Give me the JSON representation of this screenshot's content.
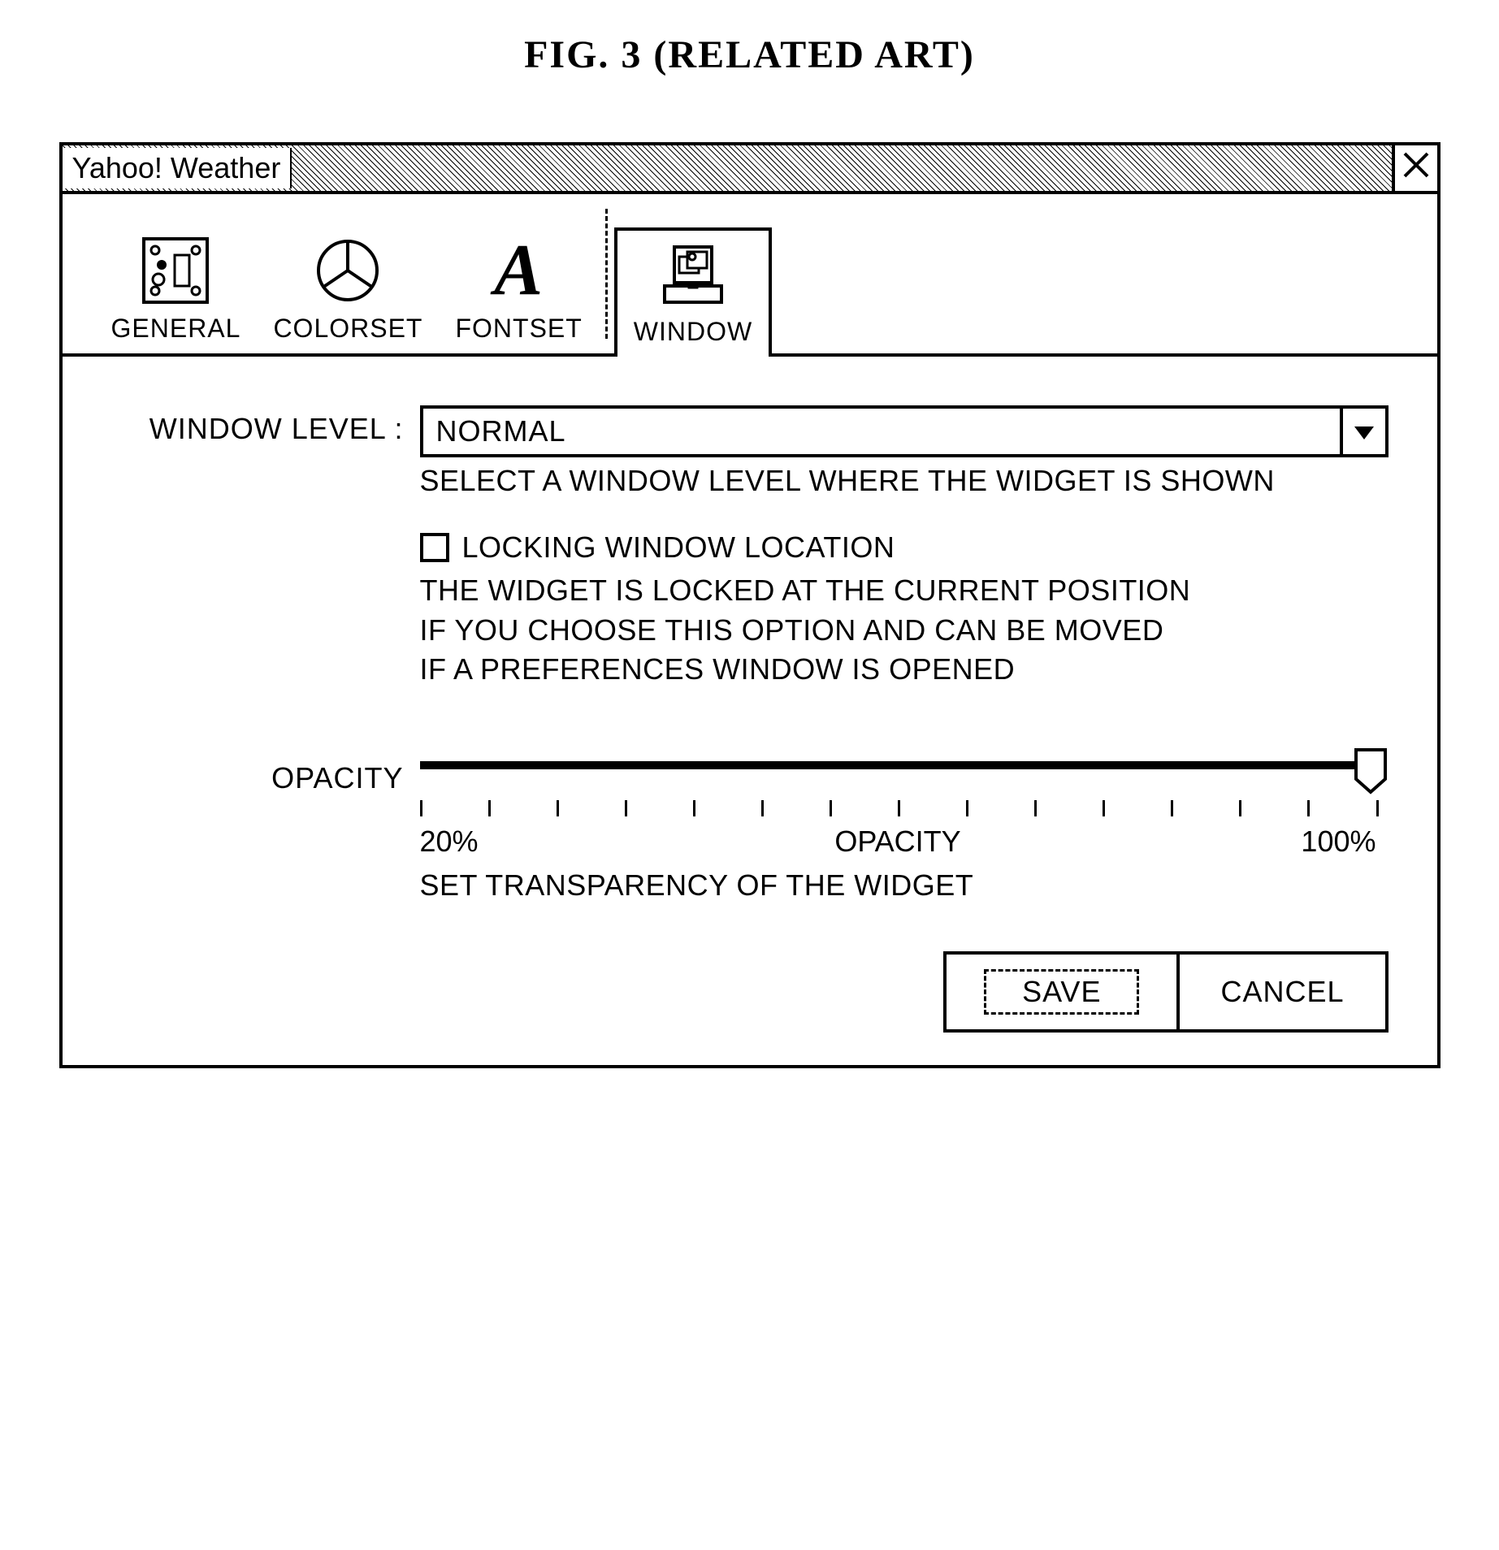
{
  "figure_title": "FIG. 3 (RELATED ART)",
  "window": {
    "title": "Yahoo! Weather"
  },
  "tabs": {
    "general": "GENERAL",
    "colorset": "COLORSET",
    "fontset": "FONTSET",
    "window": "WINDOW"
  },
  "fields": {
    "window_level": {
      "label": "WINDOW LEVEL :",
      "value": "NORMAL",
      "hint": "SELECT A WINDOW LEVEL WHERE THE WIDGET IS SHOWN"
    },
    "lock": {
      "label": "LOCKING WINDOW LOCATION",
      "desc_line1": "THE WIDGET IS LOCKED AT THE CURRENT POSITION",
      "desc_line2": "IF YOU CHOOSE THIS OPTION AND CAN BE MOVED",
      "desc_line3": "IF A PREFERENCES WINDOW IS OPENED"
    },
    "opacity": {
      "label": "OPACITY",
      "min_label": "20%",
      "center_label": "OPACITY",
      "max_label": "100%",
      "hint": "SET TRANSPARENCY OF THE WIDGET",
      "tick_count": 15,
      "value_percent": 100
    }
  },
  "buttons": {
    "save": "SAVE",
    "cancel": "CANCEL"
  },
  "colors": {
    "line": "#000000",
    "bg": "#ffffff"
  }
}
